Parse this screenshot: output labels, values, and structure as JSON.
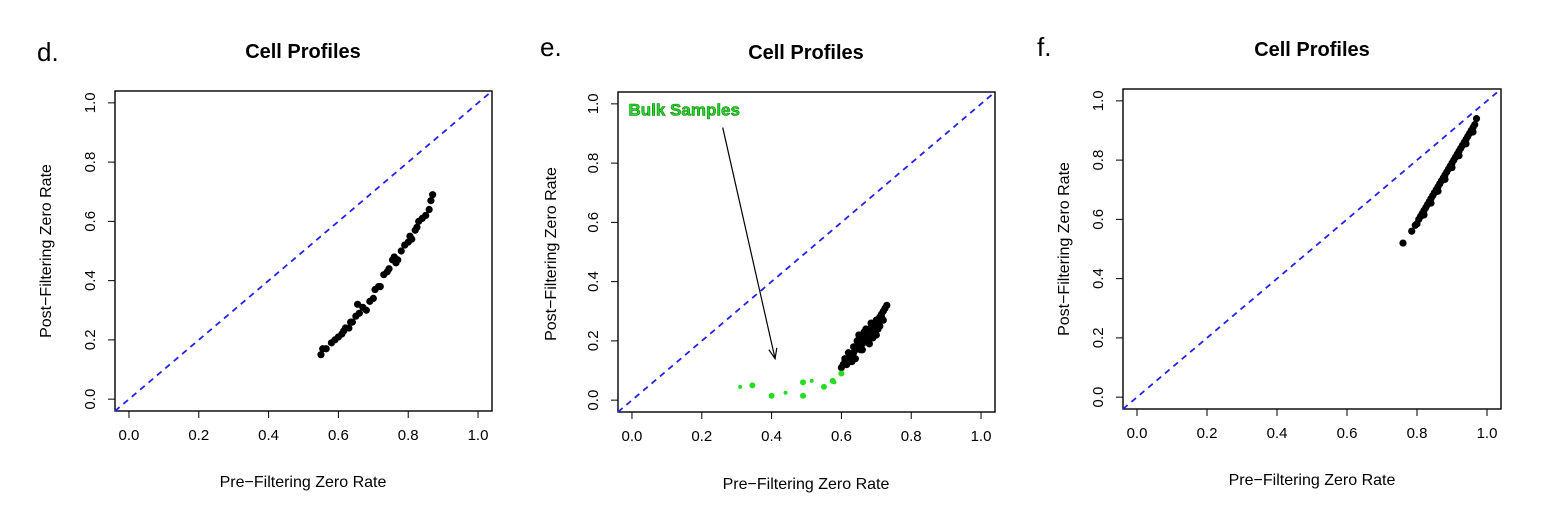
{
  "chart_data": [
    {
      "type": "scatter",
      "panel_label": "d.",
      "title": "Cell Profiles",
      "xlabel": "Pre−Filtering Zero Rate",
      "ylabel": "Post−Filtering Zero Rate",
      "xlim": [
        -0.04,
        1.04
      ],
      "ylim": [
        -0.04,
        1.04
      ],
      "xticks": [
        "0.0",
        "0.2",
        "0.4",
        "0.6",
        "0.8",
        "1.0"
      ],
      "yticks": [
        "0.0",
        "0.2",
        "0.4",
        "0.6",
        "0.8",
        "1.0"
      ],
      "reference_line": {
        "style": "dashed",
        "color": "#2222ee",
        "from": [
          -0.04,
          -0.04
        ],
        "to": [
          1.04,
          1.04
        ]
      },
      "series": [
        {
          "color": "#000000",
          "x": [
            0.55,
            0.555,
            0.565,
            0.58,
            0.59,
            0.6,
            0.61,
            0.615,
            0.62,
            0.63,
            0.635,
            0.64,
            0.65,
            0.655,
            0.66,
            0.67,
            0.68,
            0.69,
            0.7,
            0.705,
            0.715,
            0.72,
            0.73,
            0.74,
            0.745,
            0.755,
            0.76,
            0.765,
            0.77,
            0.78,
            0.79,
            0.8,
            0.805,
            0.81,
            0.82,
            0.825,
            0.83,
            0.84,
            0.85,
            0.86,
            0.865,
            0.87
          ],
          "y": [
            0.15,
            0.17,
            0.17,
            0.19,
            0.2,
            0.21,
            0.22,
            0.23,
            0.24,
            0.24,
            0.26,
            0.26,
            0.28,
            0.32,
            0.29,
            0.31,
            0.3,
            0.33,
            0.34,
            0.37,
            0.38,
            0.38,
            0.42,
            0.43,
            0.44,
            0.47,
            0.48,
            0.46,
            0.47,
            0.5,
            0.52,
            0.53,
            0.55,
            0.54,
            0.57,
            0.58,
            0.6,
            0.61,
            0.62,
            0.64,
            0.67,
            0.69
          ]
        }
      ]
    },
    {
      "type": "scatter",
      "panel_label": "e.",
      "title": "Cell Profiles",
      "xlabel": "Pre−Filtering Zero Rate",
      "ylabel": "Post−Filtering Zero Rate",
      "xlim": [
        -0.04,
        1.04
      ],
      "ylim": [
        -0.04,
        1.04
      ],
      "xticks": [
        "0.0",
        "0.2",
        "0.4",
        "0.6",
        "0.8",
        "1.0"
      ],
      "yticks": [
        "0.0",
        "0.2",
        "0.4",
        "0.6",
        "0.8",
        "1.0"
      ],
      "reference_line": {
        "style": "dashed",
        "color": "#2222ee",
        "from": [
          -0.04,
          -0.04
        ],
        "to": [
          1.04,
          1.04
        ]
      },
      "annotation": {
        "text": "Bulk Samples",
        "color": "#22dd22",
        "text_at": [
          -0.01,
          0.96
        ],
        "arrow_from": [
          0.26,
          0.92
        ],
        "arrow_to": [
          0.41,
          0.14
        ]
      },
      "series": [
        {
          "color": "#000000",
          "x": [
            0.6,
            0.605,
            0.61,
            0.615,
            0.62,
            0.625,
            0.63,
            0.635,
            0.64,
            0.645,
            0.65,
            0.655,
            0.66,
            0.665,
            0.67,
            0.675,
            0.68,
            0.685,
            0.69,
            0.695,
            0.7,
            0.705,
            0.71,
            0.715,
            0.72,
            0.725,
            0.73,
            0.62,
            0.635,
            0.65,
            0.665,
            0.68,
            0.695,
            0.71,
            0.64,
            0.66,
            0.68,
            0.7,
            0.72,
            0.61,
            0.63,
            0.655,
            0.675,
            0.69,
            0.705,
            0.645,
            0.67,
            0.685,
            0.715,
            0.625,
            0.66,
            0.69
          ],
          "y": [
            0.11,
            0.12,
            0.13,
            0.12,
            0.14,
            0.15,
            0.15,
            0.16,
            0.17,
            0.18,
            0.19,
            0.2,
            0.21,
            0.2,
            0.22,
            0.23,
            0.24,
            0.24,
            0.25,
            0.26,
            0.27,
            0.27,
            0.28,
            0.29,
            0.3,
            0.31,
            0.32,
            0.16,
            0.18,
            0.22,
            0.23,
            0.21,
            0.23,
            0.25,
            0.14,
            0.17,
            0.19,
            0.22,
            0.27,
            0.14,
            0.13,
            0.17,
            0.2,
            0.21,
            0.24,
            0.2,
            0.24,
            0.26,
            0.28,
            0.13,
            0.19,
            0.23
          ]
        },
        {
          "name": "Bulk Samples",
          "color": "#22dd22",
          "x": [
            0.31,
            0.345,
            0.4,
            0.44,
            0.49,
            0.49,
            0.515,
            0.55,
            0.575,
            0.58,
            0.6
          ],
          "y": [
            0.045,
            0.05,
            0.015,
            0.025,
            0.015,
            0.06,
            0.065,
            0.045,
            0.065,
            0.06,
            0.09
          ]
        }
      ]
    },
    {
      "type": "scatter",
      "panel_label": "f.",
      "title": "Cell Profiles",
      "xlabel": "Pre−Filtering Zero Rate",
      "ylabel": "Post−Filtering Zero Rate",
      "xlim": [
        -0.04,
        1.04
      ],
      "ylim": [
        -0.04,
        1.04
      ],
      "xticks": [
        "0.0",
        "0.2",
        "0.4",
        "0.6",
        "0.8",
        "1.0"
      ],
      "yticks": [
        "0.0",
        "0.2",
        "0.4",
        "0.6",
        "0.8",
        "1.0"
      ],
      "reference_line": {
        "style": "dashed",
        "color": "#2222ee",
        "from": [
          -0.04,
          -0.04
        ],
        "to": [
          1.04,
          1.04
        ]
      },
      "series": [
        {
          "color": "#000000",
          "x": [
            0.76,
            0.785,
            0.795,
            0.805,
            0.81,
            0.815,
            0.82,
            0.825,
            0.83,
            0.835,
            0.84,
            0.845,
            0.85,
            0.855,
            0.86,
            0.865,
            0.87,
            0.875,
            0.88,
            0.885,
            0.89,
            0.895,
            0.9,
            0.905,
            0.91,
            0.915,
            0.92,
            0.925,
            0.93,
            0.935,
            0.94,
            0.945,
            0.95,
            0.955,
            0.96,
            0.965,
            0.97,
            0.8,
            0.82,
            0.84,
            0.86,
            0.88,
            0.9,
            0.92,
            0.94,
            0.96
          ],
          "y": [
            0.52,
            0.56,
            0.58,
            0.6,
            0.61,
            0.62,
            0.63,
            0.64,
            0.65,
            0.66,
            0.67,
            0.68,
            0.69,
            0.7,
            0.71,
            0.72,
            0.73,
            0.74,
            0.75,
            0.76,
            0.77,
            0.78,
            0.79,
            0.8,
            0.81,
            0.82,
            0.83,
            0.84,
            0.85,
            0.86,
            0.87,
            0.88,
            0.89,
            0.9,
            0.91,
            0.92,
            0.94,
            0.585,
            0.615,
            0.655,
            0.695,
            0.735,
            0.775,
            0.815,
            0.855,
            0.895
          ]
        }
      ]
    }
  ]
}
